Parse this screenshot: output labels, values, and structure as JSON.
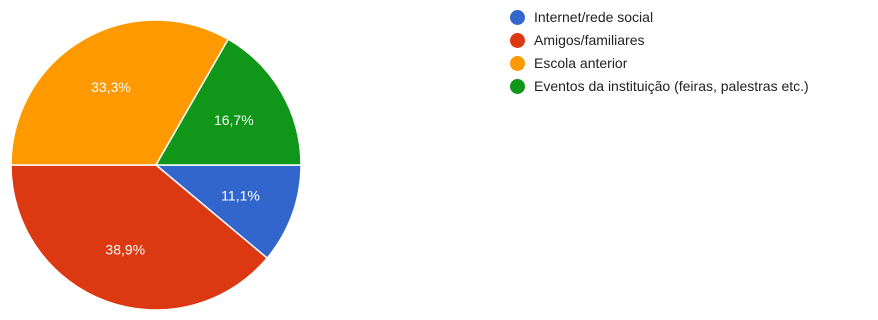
{
  "chart_data": {
    "type": "pie",
    "categories": [
      "Internet/rede social",
      "Amigos/familiares",
      "Escola anterior",
      "Eventos da instituição (feiras, palestras etc.)"
    ],
    "values": [
      11.1,
      38.9,
      33.3,
      16.7
    ],
    "value_labels": [
      "11,1%",
      "38,9%",
      "33,3%",
      "16,7%"
    ],
    "colors": [
      "#3366cc",
      "#dc3912",
      "#ff9900",
      "#109618"
    ],
    "legend_position": "right",
    "start_angle": "3 o'clock, clockwise"
  },
  "legend": {
    "items": [
      {
        "label": "Internet/rede social",
        "color": "#3366cc"
      },
      {
        "label": "Amigos/familiares",
        "color": "#dc3912"
      },
      {
        "label": "Escola anterior",
        "color": "#ff9900"
      },
      {
        "label": "Eventos da instituição (feiras, palestras etc.)",
        "color": "#109618"
      }
    ]
  }
}
